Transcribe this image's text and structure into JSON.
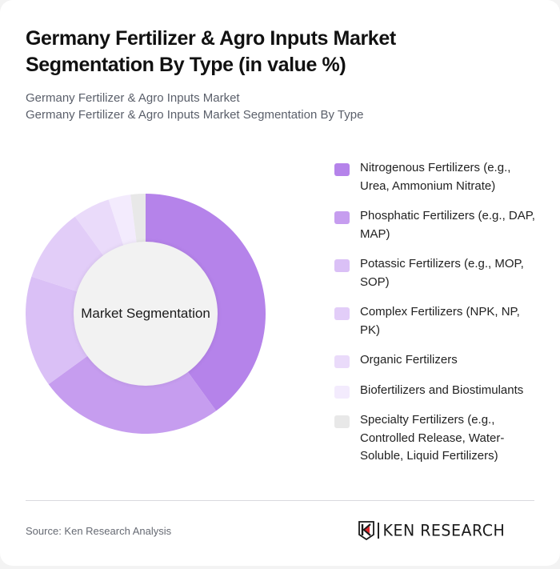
{
  "header": {
    "title": "Germany Fertilizer & Agro Inputs Market Segmentation By Type (in value %)",
    "subtitle_line1": "Germany Fertilizer & Agro Inputs Market",
    "subtitle_line2": "Germany Fertilizer & Agro Inputs Market Segmentation By Type"
  },
  "donut": {
    "center_label": "Market Segmentation"
  },
  "legend": {
    "items": [
      {
        "label": "Nitrogenous Fertilizers (e.g., Urea, Ammonium Nitrate)",
        "color": "#b583ea"
      },
      {
        "label": "Phosphatic Fertilizers (e.g., DAP, MAP)",
        "color": "#c69def"
      },
      {
        "label": "Potassic Fertilizers (e.g., MOP, SOP)",
        "color": "#dac0f6"
      },
      {
        "label": "Complex Fertilizers (NPK, NP, PK)",
        "color": "#e2cdf8"
      },
      {
        "label": "Organic Fertilizers",
        "color": "#eadbfa"
      },
      {
        "label": "Biofertilizers and Biostimulants",
        "color": "#f3ebfd"
      },
      {
        "label": "Specialty Fertilizers (e.g., Controlled Release, Water-Soluble, Liquid Fertilizers)",
        "color": "#e8e8e8"
      }
    ]
  },
  "footer": {
    "source": "Source: Ken Research Analysis",
    "logo_text": "KEN RESEARCH",
    "logo_icon": "ken-research-k-shield-icon"
  },
  "chart_data": {
    "type": "pie",
    "subtype": "donut",
    "title": "Germany Fertilizer & Agro Inputs Market Segmentation By Type (in value %)",
    "center_label": "Market Segmentation",
    "categories": [
      "Nitrogenous Fertilizers (e.g., Urea, Ammonium Nitrate)",
      "Phosphatic Fertilizers (e.g., DAP, MAP)",
      "Potassic Fertilizers (e.g., MOP, SOP)",
      "Complex Fertilizers (NPK, NP, PK)",
      "Organic Fertilizers",
      "Biofertilizers and Biostimulants",
      "Specialty Fertilizers (e.g., Controlled Release, Water-Soluble, Liquid Fertilizers)"
    ],
    "values": [
      40,
      25,
      15,
      10,
      5,
      3,
      2
    ],
    "colors": [
      "#b583ea",
      "#c69def",
      "#dac0f6",
      "#e2cdf8",
      "#eadbfa",
      "#f3ebfd",
      "#e8e8e8"
    ],
    "unit": "%",
    "start_angle": "12 o'clock, clockwise",
    "legend_position": "right",
    "source": "Source: Ken Research Analysis"
  }
}
